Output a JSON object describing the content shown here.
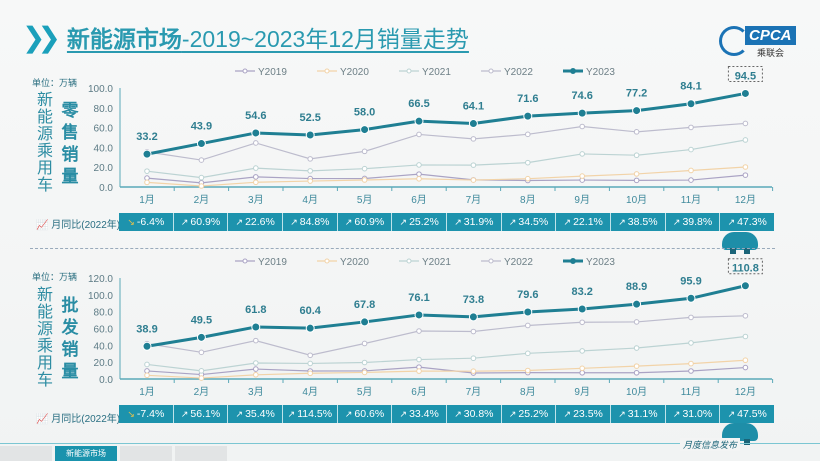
{
  "title": {
    "bold": "新能源市场",
    "rest": "-2019~2023年12月销量走势"
  },
  "logo": {
    "text": "CPCA",
    "cn": "乘联会"
  },
  "unit": "单位：万辆",
  "side_label": "新能源乘用车",
  "yoy_label": "月同比(2022年)",
  "tagline": "月度信息发布",
  "tabs": [
    "",
    "新能源市场",
    "",
    ""
  ],
  "colors": {
    "Y2019": "#aaa3c4",
    "Y2020": "#f2d3a8",
    "Y2021": "#bcd3d3",
    "Y2022": "#bdbccd",
    "Y2023": "#1f7f93",
    "bar": "#1d93ad"
  },
  "chart_data": [
    {
      "type": "line",
      "section_label": "零售销量",
      "ylim": [
        0,
        100
      ],
      "yticks": [
        "0.0",
        "20.0",
        "40.0",
        "60.0",
        "80.0",
        "100.0"
      ],
      "categories": [
        "1月",
        "2月",
        "3月",
        "4月",
        "5月",
        "6月",
        "7月",
        "8月",
        "9月",
        "10月",
        "11月",
        "12月"
      ],
      "legend": "top",
      "series": [
        {
          "name": "Y2019",
          "values": [
            9.0,
            4.2,
            10.2,
            8.5,
            8.6,
            13.0,
            7.2,
            6.6,
            7.0,
            6.7,
            7.0,
            12.0
          ]
        },
        {
          "name": "Y2020",
          "values": [
            4.7,
            1.0,
            4.8,
            6.0,
            7.1,
            8.3,
            7.0,
            8.4,
            11.0,
            13.2,
            16.7,
            20.2
          ]
        },
        {
          "name": "Y2021",
          "values": [
            16.0,
            9.5,
            19.1,
            16.3,
            18.5,
            22.3,
            22.1,
            24.6,
            33.4,
            32.1,
            37.8,
            47.5
          ]
        },
        {
          "name": "Y2022",
          "values": [
            35.5,
            27.2,
            44.5,
            28.4,
            36.0,
            53.1,
            48.6,
            53.2,
            61.1,
            55.7,
            60.2,
            64.2
          ]
        },
        {
          "name": "Y2023",
          "values": [
            33.2,
            43.9,
            54.6,
            52.5,
            58.0,
            66.5,
            64.1,
            71.6,
            74.6,
            77.2,
            84.1,
            94.5
          ],
          "labels": [
            "33.2",
            "43.9",
            "54.6",
            "52.5",
            "58.0",
            "66.5",
            "64.1",
            "71.6",
            "74.6",
            "77.2",
            "84.1",
            "94.5"
          ]
        }
      ],
      "yoy": [
        "-6.4%",
        "60.9%",
        "22.6%",
        "84.8%",
        "60.9%",
        "25.2%",
        "31.9%",
        "34.5%",
        "22.1%",
        "38.5%",
        "39.8%",
        "47.3%"
      ]
    },
    {
      "type": "line",
      "section_label": "批发销量",
      "ylim": [
        0,
        120
      ],
      "yticks": [
        "0.0",
        "20.0",
        "40.0",
        "60.0",
        "80.0",
        "100.0",
        "120.0"
      ],
      "categories": [
        "1月",
        "2月",
        "3月",
        "4月",
        "5月",
        "6月",
        "7月",
        "8月",
        "9月",
        "10月",
        "11月",
        "12月"
      ],
      "legend": "top",
      "series": [
        {
          "name": "Y2019",
          "values": [
            9.6,
            5.3,
            11.8,
            9.5,
            9.6,
            14.1,
            7.1,
            7.6,
            7.4,
            7.4,
            9.5,
            13.6
          ]
        },
        {
          "name": "Y2020",
          "values": [
            4.4,
            1.1,
            5.0,
            6.8,
            7.8,
            9.4,
            9.3,
            10.1,
            12.7,
            15.3,
            18.3,
            22.3
          ]
        },
        {
          "name": "Y2021",
          "values": [
            17.3,
            9.7,
            19.0,
            18.5,
            19.6,
            23.1,
            24.7,
            30.5,
            33.4,
            36.8,
            42.9,
            50.5
          ]
        },
        {
          "name": "Y2022",
          "values": [
            42.0,
            31.7,
            45.6,
            28.2,
            42.2,
            57.0,
            56.4,
            63.6,
            67.4,
            67.8,
            73.2,
            75.1
          ]
        },
        {
          "name": "Y2023",
          "values": [
            38.9,
            49.5,
            61.8,
            60.4,
            67.8,
            76.1,
            73.8,
            79.6,
            83.2,
            88.9,
            95.9,
            110.8
          ],
          "labels": [
            "38.9",
            "49.5",
            "61.8",
            "60.4",
            "67.8",
            "76.1",
            "73.8",
            "79.6",
            "83.2",
            "88.9",
            "95.9",
            "110.8"
          ]
        }
      ],
      "yoy": [
        "-7.4%",
        "56.1%",
        "35.4%",
        "114.5%",
        "60.6%",
        "33.4%",
        "30.8%",
        "25.2%",
        "23.5%",
        "31.1%",
        "31.0%",
        "47.5%"
      ]
    }
  ]
}
